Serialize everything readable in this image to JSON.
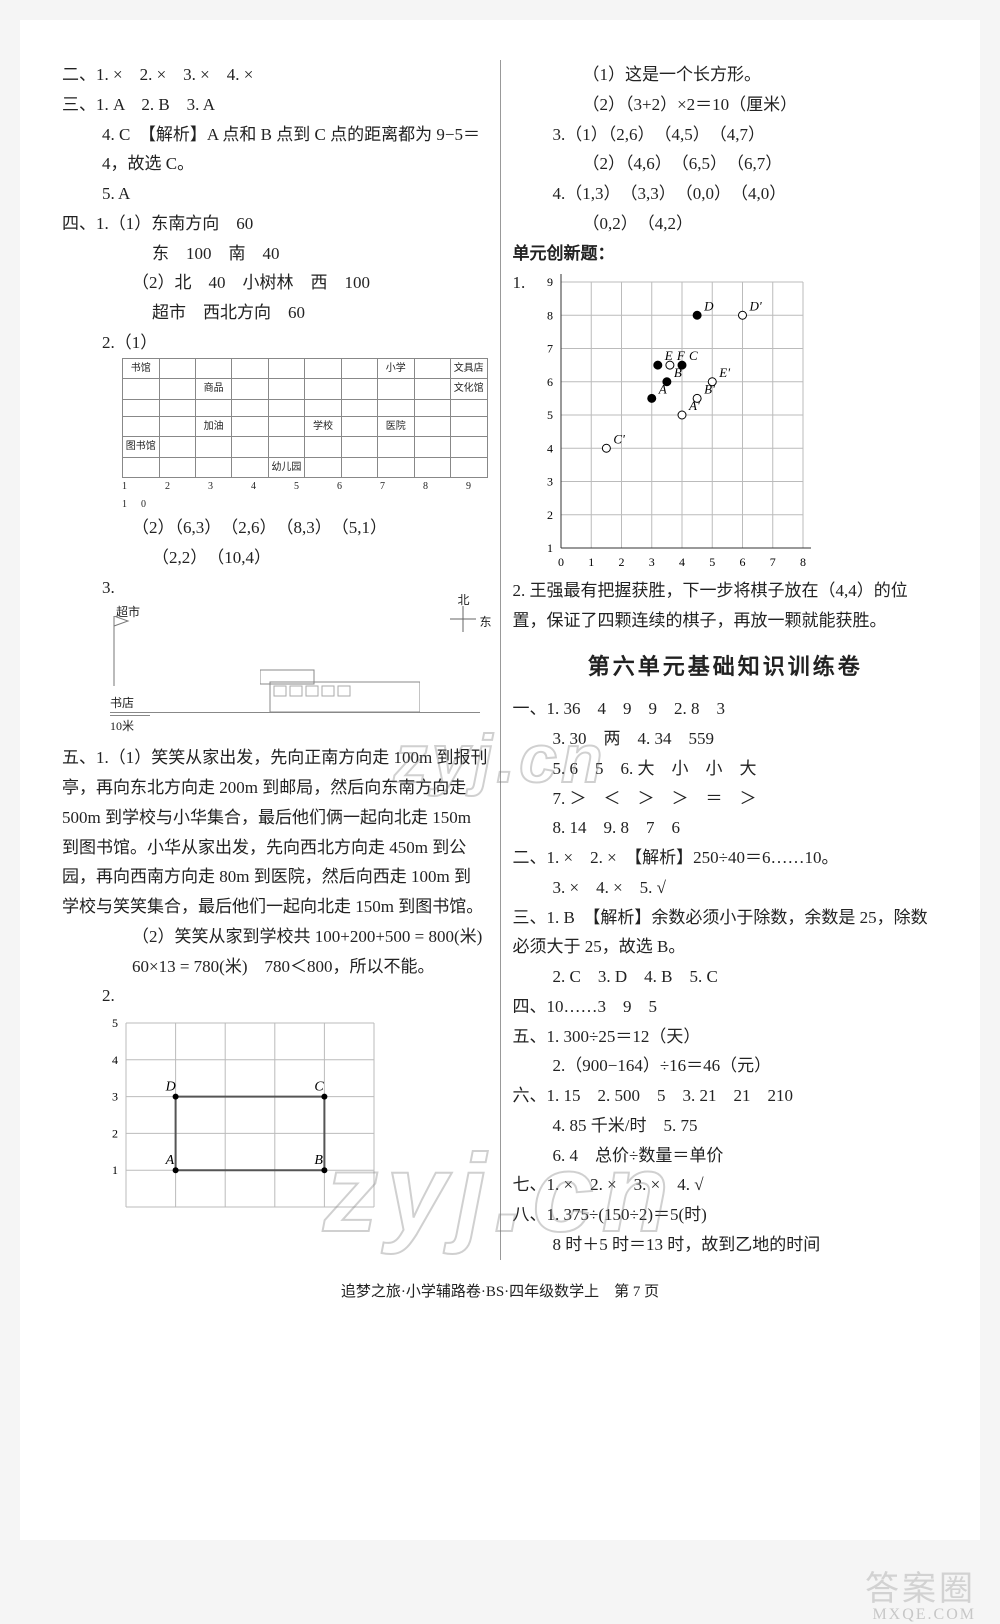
{
  "left": {
    "sec2": "二、1. ×　2. ×　3. ×　4. ×",
    "sec3_line1": "三、1. A　2. B　3. A",
    "sec3_4": "4. C　【解析】A 点和 B 点到 C 点的距离都为 9−5＝4，故选 C。",
    "sec3_5": "5. A",
    "sec4_1a": "四、1.（1）东南方向　60",
    "sec4_1b": "东　100　南　40",
    "sec4_1c": "（2）北　40　小树林　西　100",
    "sec4_1d": "超市　西北方向　60",
    "sec4_2": "2.（1）",
    "table_nums": "1　2　3　4　5　6　7　8　9　10",
    "sec4_2b": "（2）（6,3）　（2,6）　（8,3）　（5,1）",
    "sec4_2c": "（2,2）　（10,4）",
    "sec4_3": "3.",
    "sketch_top": "超市",
    "sketch_compass_n": "北",
    "sketch_compass_e": "东",
    "sketch_bl": "书店",
    "sketch_scale": "10米",
    "sec5_1a": "五、1.（1）笑笑从家出发，先向正南方向走 100m 到报刊亭，再向东北方向走 200m 到邮局，然后向东南方向走 500m 到学校与小华集合，最后他们俩一起向北走 150m 到图书馆。小华从家出发，先向西北方向走 450m 到公园，再向西南方向走 80m 到医院，然后向西走 100m 到学校与笑笑集合，最后他们一起向北走 150m 到图书馆。",
    "sec5_1b": "（2）笑笑从家到学校共 100+200+500 = 800(米)",
    "sec5_1c": "60×13 = 780(米)　780＜800，所以不能。",
    "sec5_2": "2.",
    "chart2": {
      "y": [
        1,
        2,
        3,
        4,
        5
      ],
      "x": [
        1,
        2,
        3,
        4,
        5
      ],
      "labels": {
        "A": [
          1,
          1
        ],
        "B": [
          4,
          1
        ],
        "C": [
          4,
          3
        ],
        "D": [
          1,
          3
        ]
      },
      "line_color": "#555555",
      "grid_color": "#bbbbbb"
    }
  },
  "right": {
    "r1": "（1）这是一个长方形。",
    "r2": "（2）（3+2）×2＝10（厘米）",
    "r3": "3.（1）（2,6）　（4,5）　（4,7）",
    "r4": "（2）（4,6）　（6,5）　（6,7）",
    "r5": "4.（1,3）　（3,3）　（0,0）　（4,0）",
    "r6": "（0,2）　（4,2）",
    "innov": "单元创新题：",
    "q1": "1.",
    "chart1": {
      "x": [
        0,
        1,
        2,
        3,
        4,
        5,
        6,
        7,
        8
      ],
      "y": [
        1,
        2,
        3,
        4,
        5,
        6,
        7,
        8,
        9
      ],
      "grid_color": "#bbbbbb",
      "points": {
        "A": [
          3.0,
          5.5,
          "#000"
        ],
        "B": [
          3.5,
          6.0,
          "#000"
        ],
        "C": [
          4.0,
          6.5,
          "#000"
        ],
        "E": [
          3.2,
          6.5,
          "#000"
        ],
        "F": [
          3.6,
          6.5,
          "#fff"
        ],
        "A'": [
          4.0,
          5.0,
          "#fff"
        ],
        "B'": [
          4.5,
          5.5,
          "#fff"
        ],
        "C'": [
          1.5,
          4.0,
          "#fff"
        ],
        "D'": [
          6.0,
          8.0,
          "#fff"
        ],
        "E'": [
          5.0,
          6.0,
          "#fff"
        ],
        "D": [
          4.5,
          8.0,
          "#000"
        ]
      }
    },
    "q2": "2. 王强最有把握获胜，下一步将棋子放在（4,4）的位置，保证了四颗连续的棋子，再放一颗就能获胜。",
    "unit6_title": "第六单元基础知识训练卷",
    "u6_1_1": "一、1. 36　4　9　9　2. 8　3",
    "u6_1_3": "3. 30　两　4. 34　559",
    "u6_1_5": "5. 6　5　6. 大　小　小　大",
    "u6_1_7": "7. ＞　＜　＞　＞　＝　＞",
    "u6_1_8": "8. 14　9. 8　7　6",
    "u6_2": "二、1. ×　2. ×　【解析】250÷40＝6……10。",
    "u6_2b": "3. ×　4. ×　5. √",
    "u6_3": "三、1. B　【解析】余数必须小于除数，余数是 25，除数必须大于 25，故选 B。",
    "u6_3b": "2. C　3. D　4. B　5. C",
    "u6_4": "四、10……3　9　5",
    "u6_5_1": "五、1. 300÷25＝12（天）",
    "u6_5_2": "2.（900−164）÷16＝46（元）",
    "u6_6": "六、1. 15　2. 500　5　3. 21　21　210",
    "u6_6b": "4. 85 千米/时　5. 75",
    "u6_6c": "6. 4　总价÷数量＝单价",
    "u6_7": "七、1. ×　2. ×　3. ×　4. √",
    "u6_8": "八、1. 375÷(150÷2)＝5(时)",
    "u6_8b": "8 时＋5 时＝13 时，故到乙地的时间"
  },
  "footer": "追梦之旅·小学辅路卷·BS·四年级数学上　第 7 页",
  "watermarks": {
    "wm1": "zyj.cn",
    "wm2": "zyj.cn",
    "corner": "答案圈",
    "corner_sub": "MXQE.COM"
  }
}
